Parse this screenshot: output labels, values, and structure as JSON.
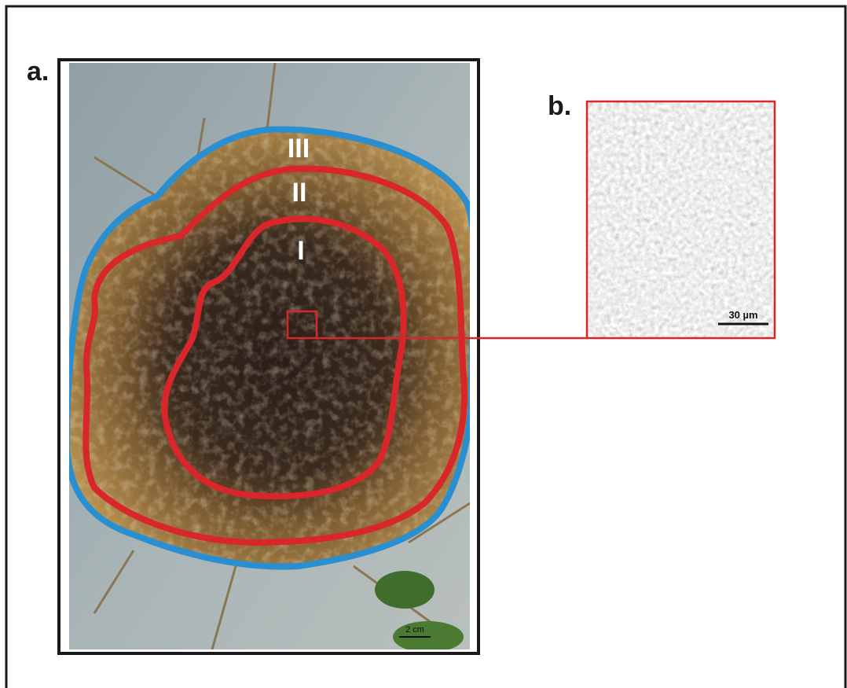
{
  "panel_a": {
    "label": "a.",
    "zones": [
      "III",
      "II",
      "I"
    ],
    "scale_bar": "2 cm"
  },
  "panel_b": {
    "label": "b.",
    "scale_bar": "30 µm"
  }
}
